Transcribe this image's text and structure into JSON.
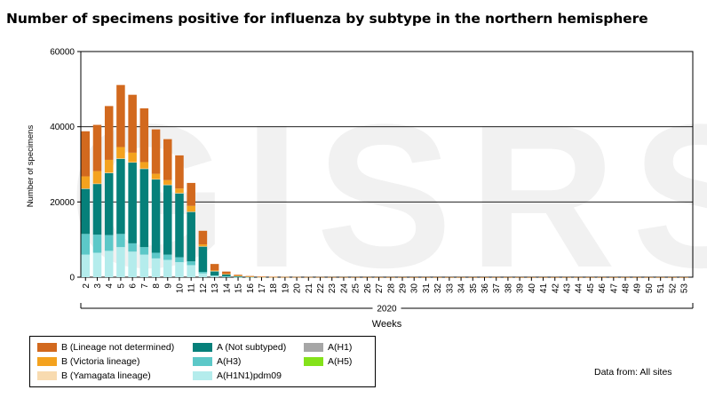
{
  "chart_data": {
    "type": "bar",
    "stacked": true,
    "title": "Number of specimens positive for influenza by subtype in the northern hemisphere",
    "xlabel": "Weeks",
    "x_group_label": "2020",
    "ylabel": "Number of specimens",
    "ylim": [
      0,
      60000
    ],
    "yticks": [
      0,
      20000,
      40000,
      60000
    ],
    "grid": "horizontal",
    "watermark": "GISRS",
    "source_note": "Data from: All sites",
    "categories": [
      "2",
      "3",
      "4",
      "5",
      "6",
      "7",
      "8",
      "9",
      "10",
      "11",
      "12",
      "13",
      "14",
      "15",
      "16",
      "17",
      "18",
      "19",
      "20",
      "21",
      "22",
      "23",
      "24",
      "25",
      "26",
      "27",
      "28",
      "29",
      "30",
      "31",
      "32",
      "33",
      "34",
      "35",
      "36",
      "37",
      "38",
      "39",
      "40",
      "41",
      "42",
      "43",
      "44",
      "45",
      "46",
      "47",
      "48",
      "49",
      "50",
      "51",
      "52",
      "53"
    ],
    "series": [
      {
        "name": "A(H1N1)pdm09",
        "color": "#b4ecec",
        "values": [
          6000,
          6500,
          7000,
          8000,
          6800,
          6000,
          5000,
          4600,
          4000,
          3200,
          1000,
          300,
          150,
          60,
          30,
          15,
          10,
          5,
          3,
          2,
          2,
          2,
          2,
          1,
          1,
          1,
          1,
          1,
          1,
          1,
          1,
          1,
          1,
          1,
          1,
          1,
          1,
          1,
          1,
          1,
          1,
          1,
          1,
          1,
          1,
          1,
          1,
          1,
          1,
          1,
          1,
          1
        ]
      },
      {
        "name": "A(H3)",
        "color": "#5cc8c8",
        "values": [
          5500,
          4800,
          4200,
          3500,
          2200,
          2000,
          1500,
          1400,
          1300,
          1000,
          400,
          150,
          80,
          40,
          20,
          10,
          5,
          3,
          2,
          2,
          2,
          1,
          1,
          1,
          1,
          1,
          1,
          1,
          1,
          1,
          1,
          1,
          1,
          1,
          1,
          1,
          1,
          1,
          1,
          1,
          1,
          1,
          1,
          1,
          1,
          1,
          1,
          1,
          1,
          1,
          1,
          1
        ]
      },
      {
        "name": "A(H1)",
        "color": "#a6a6a6",
        "values": [
          0,
          0,
          0,
          0,
          0,
          0,
          0,
          0,
          0,
          0,
          0,
          0,
          0,
          0,
          0,
          0,
          0,
          0,
          0,
          0,
          0,
          0,
          0,
          0,
          0,
          0,
          0,
          0,
          0,
          0,
          0,
          0,
          0,
          0,
          0,
          0,
          0,
          0,
          0,
          0,
          0,
          0,
          0,
          0,
          0,
          0,
          0,
          0,
          0,
          0,
          0,
          0
        ]
      },
      {
        "name": "A(H5)",
        "color": "#84e21a",
        "values": [
          0,
          0,
          0,
          0,
          0,
          0,
          0,
          0,
          0,
          0,
          0,
          0,
          0,
          0,
          0,
          0,
          0,
          0,
          0,
          0,
          0,
          0,
          0,
          0,
          0,
          0,
          0,
          0,
          0,
          0,
          0,
          0,
          0,
          0,
          0,
          0,
          0,
          0,
          0,
          0,
          0,
          0,
          0,
          0,
          0,
          0,
          0,
          0,
          0,
          0,
          0,
          0
        ]
      },
      {
        "name": "A (Not subtyped)",
        "color": "#06807a",
        "values": [
          12000,
          13500,
          16500,
          20000,
          21500,
          20800,
          19500,
          18500,
          17000,
          13200,
          6800,
          1200,
          600,
          250,
          120,
          60,
          40,
          25,
          20,
          15,
          12,
          10,
          10,
          8,
          8,
          6,
          6,
          6,
          5,
          5,
          5,
          5,
          5,
          5,
          5,
          5,
          5,
          5,
          5,
          5,
          5,
          5,
          5,
          5,
          5,
          5,
          5,
          5,
          5,
          5,
          5,
          5
        ]
      },
      {
        "name": "B (Yamagata lineage)",
        "color": "#f8dbb0",
        "values": [
          100,
          100,
          100,
          100,
          100,
          100,
          100,
          100,
          80,
          60,
          30,
          10,
          5,
          3,
          2,
          1,
          1,
          1,
          1,
          1,
          1,
          1,
          1,
          1,
          1,
          1,
          1,
          1,
          1,
          1,
          1,
          1,
          1,
          1,
          1,
          1,
          1,
          1,
          1,
          1,
          1,
          1,
          1,
          1,
          1,
          1,
          1,
          1,
          1,
          1,
          1,
          1
        ]
      },
      {
        "name": "B (Victoria lineage)",
        "color": "#f4a21e",
        "values": [
          3200,
          3300,
          3400,
          3000,
          2500,
          1700,
          1400,
          1200,
          1200,
          1500,
          500,
          150,
          60,
          30,
          15,
          8,
          5,
          3,
          2,
          2,
          2,
          1,
          1,
          1,
          1,
          1,
          1,
          1,
          1,
          1,
          1,
          1,
          1,
          1,
          1,
          1,
          1,
          1,
          1,
          1,
          1,
          1,
          1,
          1,
          1,
          1,
          1,
          1,
          1,
          1,
          1,
          1
        ]
      },
      {
        "name": "B (Lineage not determined)",
        "color": "#d2691e",
        "values": [
          12000,
          12300,
          14300,
          16500,
          15400,
          14300,
          11800,
          10900,
          8800,
          6100,
          3600,
          1700,
          600,
          250,
          130,
          70,
          40,
          20,
          15,
          10,
          8,
          8,
          7,
          6,
          6,
          5,
          5,
          5,
          5,
          5,
          5,
          5,
          5,
          5,
          5,
          5,
          5,
          5,
          5,
          5,
          5,
          5,
          5,
          5,
          5,
          5,
          5,
          5,
          5,
          5,
          5,
          5
        ]
      }
    ],
    "legend": [
      [
        "B (Lineage not determined)",
        "A (Not subtyped)",
        "A(H1)"
      ],
      [
        "B (Victoria lineage)",
        "A(H3)",
        "A(H5)"
      ],
      [
        "B (Yamagata lineage)",
        "A(H1N1)pdm09"
      ]
    ]
  }
}
